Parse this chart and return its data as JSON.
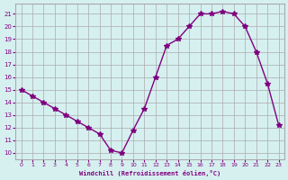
{
  "x": [
    0,
    1,
    2,
    3,
    4,
    5,
    6,
    7,
    8,
    9,
    10,
    11,
    12,
    13,
    14,
    15,
    16,
    17,
    18,
    19,
    20,
    21,
    22,
    23
  ],
  "y": [
    15,
    14.5,
    14,
    13.5,
    13,
    12.5,
    12,
    11.5,
    10.2,
    10,
    11.8,
    13.5,
    16,
    18.5,
    19,
    20,
    21,
    21,
    21.2,
    21,
    20,
    18,
    15.5,
    12.2
  ],
  "line_color": "#800080",
  "marker": "*",
  "marker_size": 4,
  "bg_color": "#d6f0f0",
  "grid_color": "#aaaaaa",
  "xlabel": "Windchill (Refroidissement éolien,°C)",
  "ylabel_ticks": [
    10,
    11,
    12,
    13,
    14,
    15,
    16,
    17,
    18,
    19,
    20,
    21
  ],
  "xticks": [
    0,
    1,
    2,
    3,
    4,
    5,
    6,
    7,
    8,
    9,
    10,
    11,
    12,
    13,
    14,
    15,
    16,
    17,
    18,
    19,
    20,
    21,
    22,
    23
  ],
  "ylim": [
    9.5,
    21.8
  ],
  "xlim": [
    -0.5,
    23.5
  ],
  "tick_color": "#800080",
  "label_color": "#800080"
}
